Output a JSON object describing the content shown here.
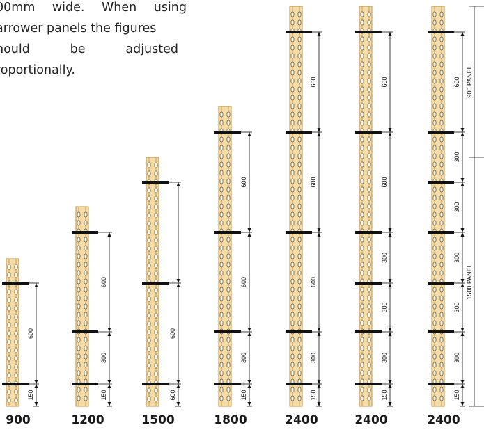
{
  "intro_text": {
    "line1": "00mm wide. When using",
    "line2": "arrower panels the figures",
    "line3": "hould be adjusted",
    "line4": "roportionally."
  },
  "colors": {
    "soldier": "#f3dca8",
    "soldier_edge": "#b8934f",
    "dimension": "#111111"
  },
  "columns": [
    {
      "label": "900",
      "dims": [
        "150",
        "600"
      ]
    },
    {
      "label": "1200",
      "dims": [
        "150",
        "300",
        "600"
      ]
    },
    {
      "label": "1500",
      "dims": [
        "600",
        "600"
      ]
    },
    {
      "label": "1800",
      "dims": [
        "150",
        "300",
        "600",
        "600"
      ]
    },
    {
      "label": "2400",
      "dims": [
        "150",
        "300",
        "600",
        "600",
        "600"
      ]
    },
    {
      "label": "2400",
      "dims": [
        "150",
        "300",
        "300",
        "300",
        "600",
        "600"
      ]
    },
    {
      "label": "2400",
      "dims": [
        "150",
        "300",
        "300",
        "300",
        "300",
        "300",
        "600"
      ],
      "panel_labels": [
        "900 PANEL",
        "1500 PANEL"
      ]
    }
  ]
}
